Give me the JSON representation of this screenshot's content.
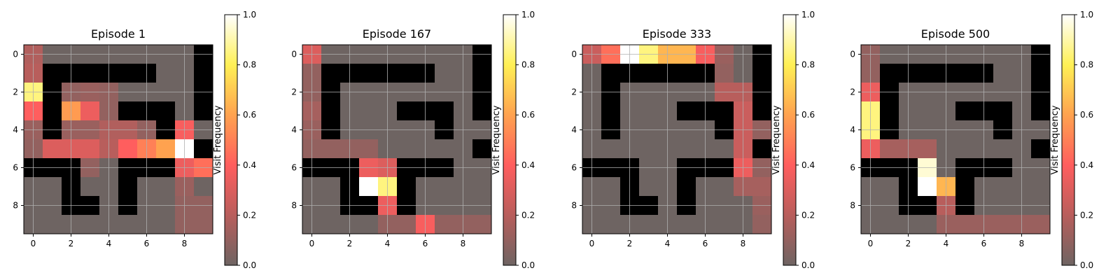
{
  "chart_data": [
    {
      "type": "heatmap",
      "title": "Episode 1",
      "colorbar_label": "Visit Frequency",
      "colorbar_ticks": [
        "0.0",
        "0.2",
        "0.4",
        "0.6",
        "0.8",
        "1.0"
      ],
      "x_ticks": [
        "0",
        "2",
        "4",
        "6",
        "8"
      ],
      "y_ticks": [
        "0",
        "2",
        "4",
        "6",
        "8"
      ],
      "xlim": [
        -0.5,
        9.5
      ],
      "ylim": [
        9.5,
        -0.5
      ],
      "grid": true,
      "walls": [
        [
          0,
          0,
          0,
          0,
          0,
          0,
          0,
          0,
          0,
          1
        ],
        [
          0,
          1,
          1,
          1,
          1,
          1,
          1,
          0,
          0,
          1
        ],
        [
          0,
          1,
          0,
          0,
          0,
          0,
          0,
          0,
          0,
          1
        ],
        [
          0,
          1,
          0,
          0,
          0,
          1,
          1,
          1,
          0,
          1
        ],
        [
          0,
          1,
          0,
          0,
          0,
          0,
          0,
          1,
          0,
          0
        ],
        [
          0,
          0,
          0,
          0,
          0,
          0,
          0,
          0,
          0,
          1
        ],
        [
          1,
          1,
          1,
          0,
          0,
          1,
          1,
          1,
          0,
          0
        ],
        [
          0,
          0,
          1,
          0,
          0,
          1,
          0,
          0,
          0,
          0
        ],
        [
          0,
          0,
          1,
          1,
          0,
          1,
          0,
          0,
          0,
          0
        ],
        [
          0,
          0,
          0,
          0,
          0,
          0,
          0,
          0,
          0,
          0
        ]
      ],
      "values": [
        [
          0.18,
          0,
          0,
          0,
          0,
          0,
          0,
          0,
          0,
          0
        ],
        [
          0.2,
          0,
          0,
          0,
          0,
          0,
          0,
          0,
          0,
          0
        ],
        [
          0.85,
          0,
          0.1,
          0.12,
          0.1,
          0,
          0,
          0,
          0,
          0
        ],
        [
          0.4,
          0,
          0.58,
          0.35,
          0.1,
          0,
          0,
          0,
          0,
          0
        ],
        [
          0.12,
          0,
          0.12,
          0.12,
          0.18,
          0.18,
          0.1,
          0,
          0.38,
          0
        ],
        [
          0.1,
          0.3,
          0.3,
          0.3,
          0.2,
          0.4,
          0.5,
          0.6,
          1.0,
          0
        ],
        [
          0,
          0,
          0,
          0.1,
          0,
          0,
          0,
          0,
          0.35,
          0.45
        ],
        [
          0,
          0,
          0,
          0,
          0,
          0,
          0,
          0,
          0.12,
          0
        ],
        [
          0,
          0,
          0,
          0,
          0,
          0,
          0,
          0,
          0.1,
          0.1
        ],
        [
          0,
          0,
          0,
          0,
          0,
          0,
          0,
          0,
          0.1,
          0.1
        ]
      ]
    },
    {
      "type": "heatmap",
      "title": "Episode 167",
      "colorbar_label": "Visit Frequency",
      "colorbar_ticks": [
        "0.0",
        "0.2",
        "0.4",
        "0.6",
        "0.8",
        "1.0"
      ],
      "x_ticks": [
        "0",
        "2",
        "4",
        "6",
        "8"
      ],
      "y_ticks": [
        "0",
        "2",
        "4",
        "6",
        "8"
      ],
      "xlim": [
        -0.5,
        9.5
      ],
      "ylim": [
        9.5,
        -0.5
      ],
      "grid": true,
      "walls": [
        [
          0,
          0,
          0,
          0,
          0,
          0,
          0,
          0,
          0,
          1
        ],
        [
          0,
          1,
          1,
          1,
          1,
          1,
          1,
          0,
          0,
          1
        ],
        [
          0,
          1,
          0,
          0,
          0,
          0,
          0,
          0,
          0,
          1
        ],
        [
          0,
          1,
          0,
          0,
          0,
          1,
          1,
          1,
          0,
          1
        ],
        [
          0,
          1,
          0,
          0,
          0,
          0,
          0,
          1,
          0,
          0
        ],
        [
          0,
          0,
          0,
          0,
          0,
          0,
          0,
          0,
          0,
          1
        ],
        [
          1,
          1,
          1,
          0,
          0,
          1,
          1,
          1,
          0,
          0
        ],
        [
          0,
          0,
          1,
          0,
          0,
          1,
          0,
          0,
          0,
          0
        ],
        [
          0,
          0,
          1,
          1,
          0,
          1,
          0,
          0,
          0,
          0
        ],
        [
          0,
          0,
          0,
          0,
          0,
          0,
          0,
          0,
          0,
          0
        ]
      ],
      "values": [
        [
          0.3,
          0,
          0,
          0,
          0,
          0,
          0,
          0,
          0,
          0
        ],
        [
          0.1,
          0,
          0,
          0,
          0,
          0,
          0,
          0,
          0,
          0
        ],
        [
          0.1,
          0,
          0,
          0,
          0,
          0,
          0,
          0,
          0,
          0
        ],
        [
          0.15,
          0,
          0,
          0,
          0,
          0,
          0,
          0,
          0,
          0
        ],
        [
          0.12,
          0,
          0,
          0,
          0,
          0,
          0,
          0,
          0,
          0
        ],
        [
          0.1,
          0.1,
          0.1,
          0.1,
          0,
          0,
          0,
          0,
          0,
          0
        ],
        [
          0,
          0,
          0,
          0.35,
          0.3,
          0,
          0,
          0,
          0,
          0
        ],
        [
          0,
          0,
          0,
          1.0,
          0.85,
          0,
          0,
          0,
          0,
          0
        ],
        [
          0,
          0,
          0,
          0,
          0.35,
          0,
          0,
          0,
          0,
          0
        ],
        [
          0,
          0,
          0,
          0,
          0.1,
          0.1,
          0.38,
          0.1,
          0.1,
          0.1
        ]
      ]
    },
    {
      "type": "heatmap",
      "title": "Episode 333",
      "colorbar_label": "Visit Frequency",
      "colorbar_ticks": [
        "0.0",
        "0.2",
        "0.4",
        "0.6",
        "0.8",
        "1.0"
      ],
      "x_ticks": [
        "0",
        "2",
        "4",
        "6",
        "8"
      ],
      "y_ticks": [
        "0",
        "2",
        "4",
        "6",
        "8"
      ],
      "xlim": [
        -0.5,
        9.5
      ],
      "ylim": [
        9.5,
        -0.5
      ],
      "grid": true,
      "walls": [
        [
          0,
          0,
          0,
          0,
          0,
          0,
          0,
          0,
          0,
          1
        ],
        [
          0,
          1,
          1,
          1,
          1,
          1,
          1,
          0,
          0,
          1
        ],
        [
          0,
          1,
          0,
          0,
          0,
          0,
          0,
          0,
          0,
          1
        ],
        [
          0,
          1,
          0,
          0,
          0,
          1,
          1,
          1,
          0,
          1
        ],
        [
          0,
          1,
          0,
          0,
          0,
          0,
          0,
          1,
          0,
          0
        ],
        [
          0,
          0,
          0,
          0,
          0,
          0,
          0,
          0,
          0,
          1
        ],
        [
          1,
          1,
          1,
          0,
          0,
          1,
          1,
          1,
          0,
          0
        ],
        [
          0,
          0,
          1,
          0,
          0,
          1,
          0,
          0,
          0,
          0
        ],
        [
          0,
          0,
          1,
          1,
          0,
          1,
          0,
          0,
          0,
          0
        ],
        [
          0,
          0,
          0,
          0,
          0,
          0,
          0,
          0,
          0,
          0
        ]
      ],
      "values": [
        [
          0.25,
          0.45,
          1.0,
          0.85,
          0.65,
          0.65,
          0.38,
          0.12,
          0,
          0
        ],
        [
          0,
          0,
          0,
          0,
          0,
          0,
          0,
          0.1,
          0,
          0
        ],
        [
          0,
          0,
          0,
          0,
          0,
          0,
          0,
          0.2,
          0.2,
          0
        ],
        [
          0,
          0,
          0,
          0,
          0,
          0,
          0,
          0,
          0.25,
          0
        ],
        [
          0,
          0,
          0,
          0,
          0,
          0,
          0,
          0,
          0.25,
          0.1
        ],
        [
          0,
          0,
          0,
          0,
          0,
          0,
          0,
          0,
          0.25,
          0
        ],
        [
          0,
          0,
          0,
          0,
          0,
          0,
          0,
          0,
          0.35,
          0.1
        ],
        [
          0,
          0,
          0,
          0,
          0,
          0,
          0,
          0,
          0.15,
          0.15
        ],
        [
          0,
          0,
          0,
          0,
          0,
          0,
          0,
          0,
          0,
          0.12
        ],
        [
          0,
          0,
          0,
          0,
          0,
          0,
          0,
          0,
          0,
          0.1
        ]
      ]
    },
    {
      "type": "heatmap",
      "title": "Episode 500",
      "colorbar_label": "Visit Frequency",
      "colorbar_ticks": [
        "0.0",
        "0.2",
        "0.4",
        "0.6",
        "0.8",
        "1.0"
      ],
      "x_ticks": [
        "0",
        "2",
        "4",
        "6",
        "8"
      ],
      "y_ticks": [
        "0",
        "2",
        "4",
        "6",
        "8"
      ],
      "xlim": [
        -0.5,
        9.5
      ],
      "ylim": [
        9.5,
        -0.5
      ],
      "grid": true,
      "walls": [
        [
          0,
          0,
          0,
          0,
          0,
          0,
          0,
          0,
          0,
          1
        ],
        [
          0,
          1,
          1,
          1,
          1,
          1,
          1,
          0,
          0,
          1
        ],
        [
          0,
          1,
          0,
          0,
          0,
          0,
          0,
          0,
          0,
          1
        ],
        [
          0,
          1,
          0,
          0,
          0,
          1,
          1,
          1,
          0,
          1
        ],
        [
          0,
          1,
          0,
          0,
          0,
          0,
          0,
          1,
          0,
          0
        ],
        [
          0,
          0,
          0,
          0,
          0,
          0,
          0,
          0,
          0,
          1
        ],
        [
          1,
          1,
          1,
          0,
          0,
          1,
          1,
          1,
          0,
          0
        ],
        [
          0,
          0,
          1,
          0,
          0,
          1,
          0,
          0,
          0,
          0
        ],
        [
          0,
          0,
          1,
          1,
          0,
          1,
          0,
          0,
          0,
          0
        ],
        [
          0,
          0,
          0,
          0,
          0,
          0,
          0,
          0,
          0,
          0
        ]
      ],
      "values": [
        [
          0.1,
          0,
          0,
          0,
          0,
          0,
          0,
          0,
          0,
          0
        ],
        [
          0.1,
          0,
          0,
          0,
          0,
          0,
          0,
          0,
          0,
          0
        ],
        [
          0.35,
          0,
          0,
          0,
          0,
          0,
          0,
          0,
          0,
          0
        ],
        [
          0.85,
          0,
          0,
          0,
          0,
          0,
          0,
          0,
          0,
          0
        ],
        [
          0.85,
          0,
          0,
          0,
          0,
          0,
          0,
          0,
          0,
          0
        ],
        [
          0.35,
          0.15,
          0.15,
          0.15,
          0,
          0,
          0,
          0,
          0,
          0
        ],
        [
          0,
          0,
          0,
          0.95,
          0,
          0,
          0,
          0,
          0,
          0
        ],
        [
          0,
          0,
          0,
          1.0,
          0.65,
          0,
          0,
          0,
          0,
          0
        ],
        [
          0,
          0,
          0,
          0,
          0.2,
          0,
          0,
          0,
          0,
          0
        ],
        [
          0,
          0,
          0,
          0,
          0.12,
          0.12,
          0.12,
          0.12,
          0.12,
          0.12
        ]
      ]
    }
  ],
  "colormap": {
    "name": "hot-over-gray",
    "wall_color": "#000000",
    "empty_color": "#6e6462",
    "stops": [
      [
        0.0,
        "#6e6462"
      ],
      [
        0.2,
        "#b85e5c"
      ],
      [
        0.4,
        "#ff5e5e"
      ],
      [
        0.6,
        "#ffa24f"
      ],
      [
        0.8,
        "#fff055"
      ],
      [
        1.0,
        "#ffffff"
      ]
    ]
  }
}
